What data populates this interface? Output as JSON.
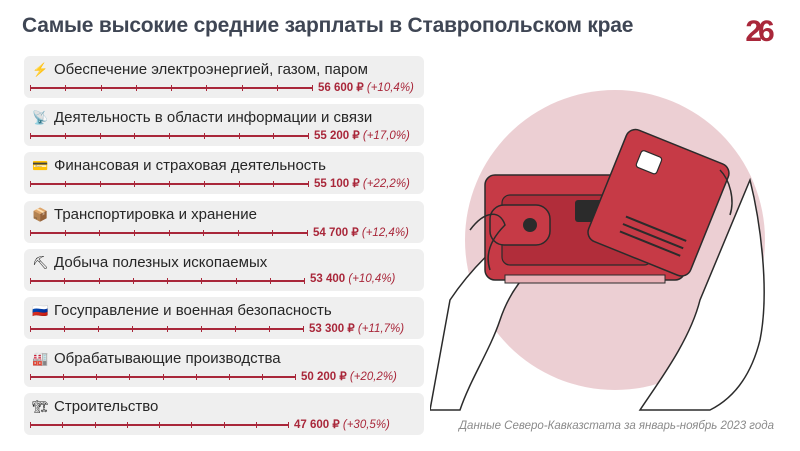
{
  "title": "Самые высокие средние зарплаты в Ставропольском крае",
  "logo_text": "26",
  "source": "Данные Северо-Кавказстата за январь-ноябрь 2023 года",
  "colors": {
    "accent": "#a9273a",
    "row_bg": "#efefef",
    "title": "#3f4654"
  },
  "chart_data": {
    "type": "bar",
    "title": "Самые высокие средние зарплаты в Ставропольском крае",
    "categories": [
      "Обеспечение электроэнергией, газом, паром",
      "Деятельность в области информации и связи",
      "Финансовая и страховая деятельность",
      "Транспортировка и хранение",
      "Добыча полезных ископаемых",
      "Госуправление и военная безопасность",
      "Обрабатывающие производства",
      "Строительство"
    ],
    "values": [
      56600,
      55200,
      55100,
      54700,
      53400,
      53300,
      50200,
      47600
    ],
    "growth_pct": [
      10.4,
      17.0,
      22.2,
      12.4,
      10.4,
      11.7,
      20.2,
      30.5
    ],
    "items": [
      {
        "icon": "lightning-icon",
        "emoji": "⚡",
        "label": "Обеспечение электроэнергией, газом, паром",
        "amount": "56 600 ₽",
        "change": "(+10,4%)"
      },
      {
        "icon": "satellite-icon",
        "emoji": "📡",
        "label": "Деятельность в области информации и связи",
        "amount": "55 200 ₽",
        "change": "(+17,0%)"
      },
      {
        "icon": "credit-card-icon",
        "emoji": "💳",
        "label": "Финансовая и страховая деятельность",
        "amount": "55 100 ₽",
        "change": "(+22,2%)"
      },
      {
        "icon": "package-icon",
        "emoji": "📦",
        "label": "Транспортировка и хранение",
        "amount": "54 700 ₽",
        "change": "(+12,4%)"
      },
      {
        "icon": "pickaxe-icon",
        "emoji": "⛏",
        "label": "Добыча полезных ископаемых",
        "amount": "53 400",
        "change": "(+10,4%)"
      },
      {
        "icon": "russia-flag-icon",
        "emoji": "🇷🇺",
        "label": "Госуправление и военная безопасность",
        "amount": "53 300 ₽",
        "change": "(+11,7%)"
      },
      {
        "icon": "factory-icon",
        "emoji": "🏭",
        "label": "Обрабатывающие производства",
        "amount": "50 200 ₽",
        "change": "(+20,2%)"
      },
      {
        "icon": "crane-icon",
        "emoji": "🏗",
        "label": "Строительство",
        "amount": "47 600 ₽",
        "change": "(+30,5%)"
      }
    ]
  }
}
